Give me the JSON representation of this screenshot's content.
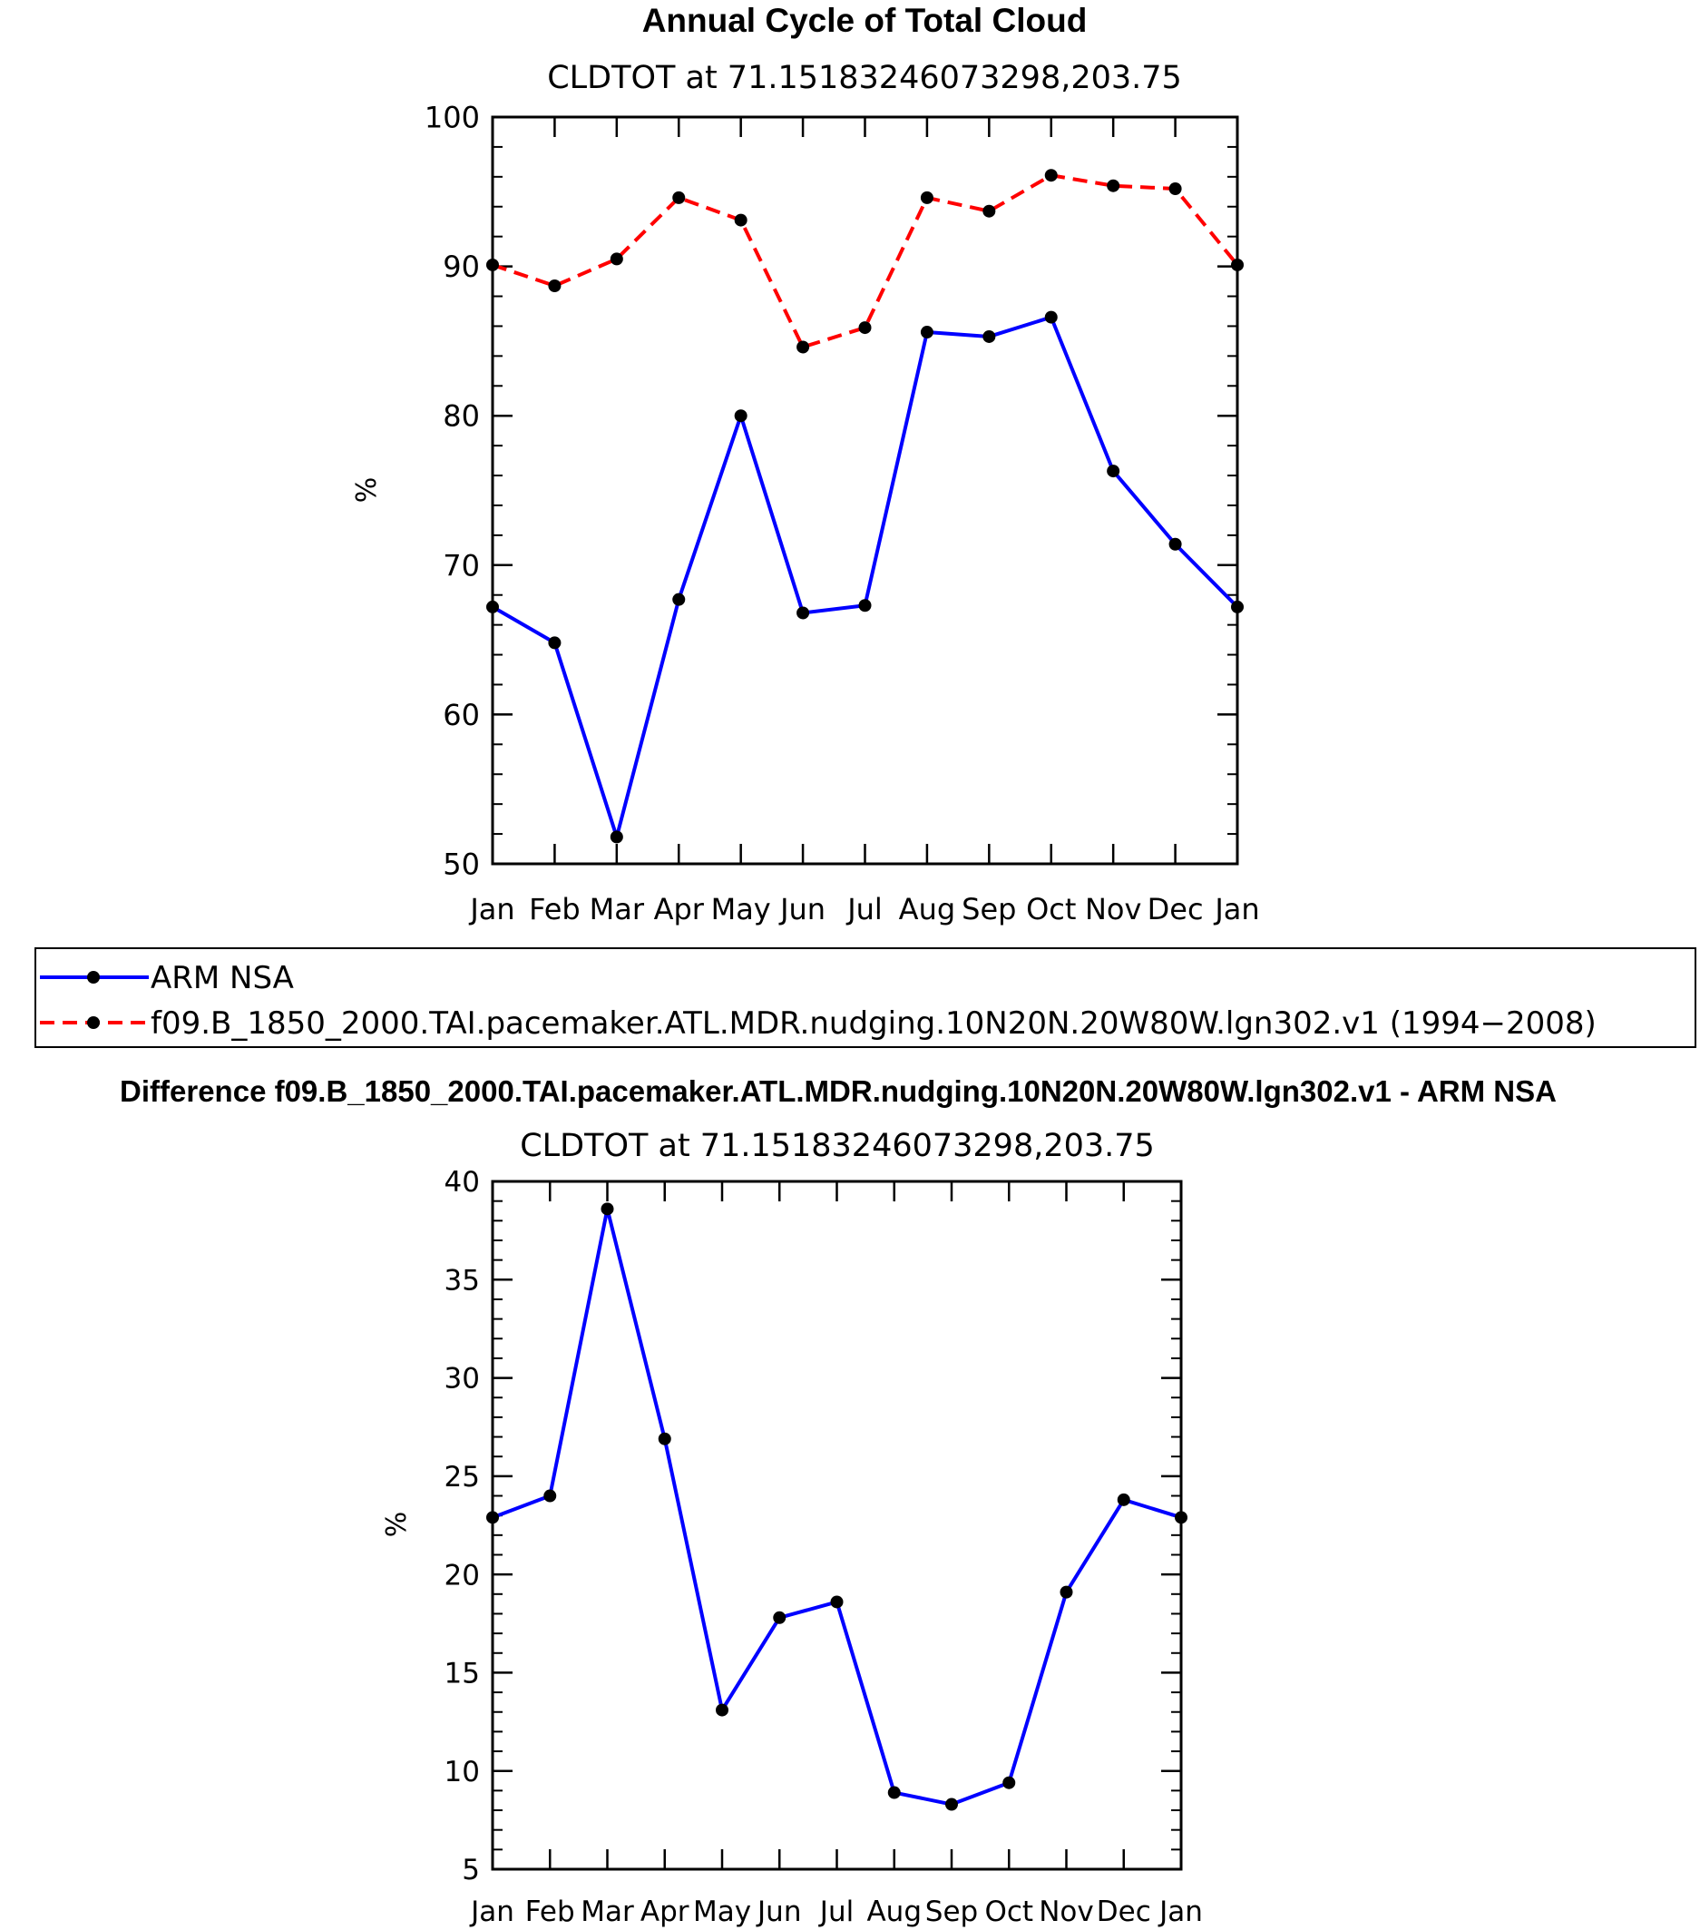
{
  "chart_data": [
    {
      "type": "line",
      "title": "Annual Cycle of Total Cloud",
      "subtitle": "CLDTOT at 71.15183246073298,203.75",
      "xlabel": "",
      "ylabel": "%",
      "categories": [
        "Jan",
        "Feb",
        "Mar",
        "Apr",
        "May",
        "Jun",
        "Jul",
        "Aug",
        "Sep",
        "Oct",
        "Nov",
        "Dec",
        "Jan"
      ],
      "ylim": [
        50,
        100
      ],
      "y_ticks": [
        "50",
        "60",
        "70",
        "80",
        "90",
        "100"
      ],
      "series": [
        {
          "name": "ARM NSA",
          "color": "#0000ff",
          "dash": "solid",
          "values": [
            67.2,
            64.8,
            51.8,
            67.7,
            80.0,
            66.8,
            67.3,
            85.6,
            85.3,
            86.6,
            76.3,
            71.4,
            67.2
          ]
        },
        {
          "name": "f09.B_1850_2000.TAI.pacemaker.ATL.MDR.nudging.10N20N.20W80W.lgn302.v1 (1994−2008)",
          "color": "#ff0000",
          "dash": "dashed",
          "values": [
            90.1,
            88.7,
            90.5,
            94.6,
            93.1,
            84.6,
            85.9,
            94.6,
            93.7,
            96.1,
            95.4,
            95.2,
            90.1
          ]
        }
      ],
      "legend": {
        "placement": "bottom",
        "entries": [
          "ARM NSA",
          "f09.B_1850_2000.TAI.pacemaker.ATL.MDR.nudging.10N20N.20W80W.lgn302.v1 (1994−2008)"
        ]
      },
      "marker_color": "#000000"
    },
    {
      "type": "line",
      "title": "Difference f09.B_1850_2000.TAI.pacemaker.ATL.MDR.nudging.10N20N.20W80W.lgn302.v1 - ARM NSA",
      "subtitle": "CLDTOT at 71.15183246073298,203.75",
      "xlabel": "",
      "ylabel": "%",
      "categories": [
        "Jan",
        "Feb",
        "Mar",
        "Apr",
        "May",
        "Jun",
        "Jul",
        "Aug",
        "Sep",
        "Oct",
        "Nov",
        "Dec",
        "Jan"
      ],
      "ylim": [
        5,
        40
      ],
      "y_ticks": [
        "5",
        "10",
        "15",
        "20",
        "25",
        "30",
        "35",
        "40"
      ],
      "series": [
        {
          "name": "Difference",
          "color": "#0000ff",
          "dash": "solid",
          "values": [
            22.9,
            24.0,
            38.6,
            26.9,
            13.1,
            17.8,
            18.6,
            8.9,
            8.3,
            9.4,
            19.1,
            23.8,
            22.9
          ]
        }
      ],
      "marker_color": "#000000"
    }
  ]
}
